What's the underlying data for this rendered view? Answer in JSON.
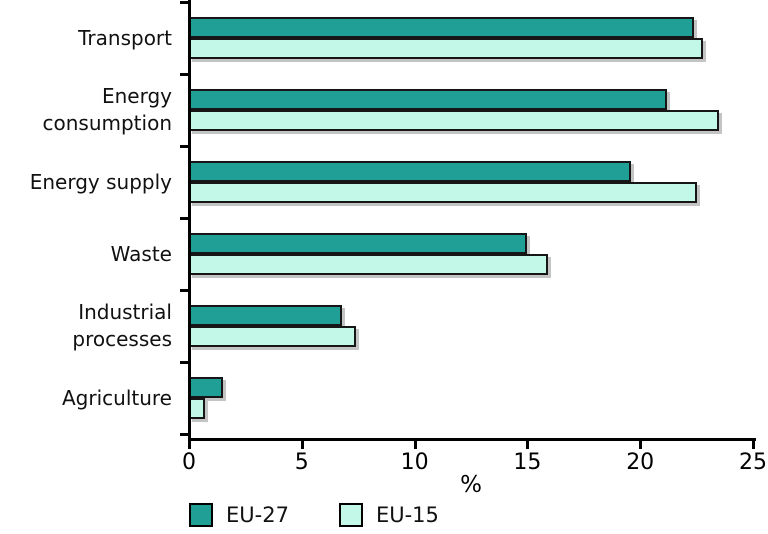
{
  "chart_data": {
    "type": "bar",
    "orientation": "horizontal",
    "title": "",
    "xlabel": "%",
    "ylabel": "",
    "xlim": [
      0,
      25
    ],
    "xticks": [
      0,
      5,
      10,
      15,
      20,
      25
    ],
    "grid": false,
    "legend_position": "bottom",
    "bar_border_color": "#161616",
    "categories": [
      "Transport",
      "Energy\nconsumption",
      "Energy supply",
      "Waste",
      "Industrial\nprocesses",
      "Agriculture"
    ],
    "series": [
      {
        "name": "EU-27",
        "color": "#1f9f95",
        "values": [
          22.4,
          21.2,
          19.6,
          15.0,
          6.8,
          1.5
        ]
      },
      {
        "name": "EU-15",
        "color": "#c3f8e8",
        "values": [
          22.8,
          23.5,
          22.5,
          15.9,
          7.4,
          0.7
        ]
      }
    ]
  }
}
